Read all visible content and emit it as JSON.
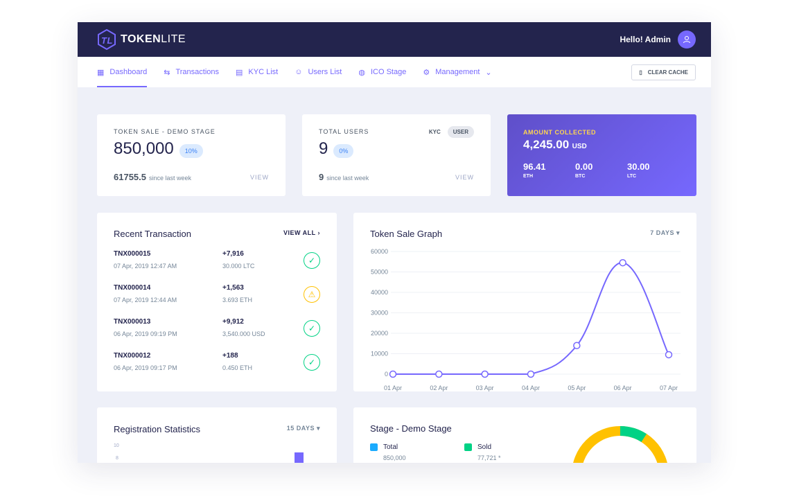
{
  "header": {
    "brand_bold": "TOKEN",
    "brand_light": "LITE",
    "greeting": "Hello! Admin"
  },
  "nav": {
    "items": [
      {
        "label": "Dashboard",
        "icon": "grid-icon"
      },
      {
        "label": "Transactions",
        "icon": "swap-icon"
      },
      {
        "label": "KYC List",
        "icon": "document-icon"
      },
      {
        "label": "Users List",
        "icon": "users-icon"
      },
      {
        "label": "ICO Stage",
        "icon": "coins-icon"
      },
      {
        "label": "Management",
        "icon": "gear-icon"
      }
    ],
    "clear_cache": "CLEAR CACHE"
  },
  "token_sale": {
    "label": "TOKEN SALE - DEMO STAGE",
    "value": "850,000",
    "pct": "10%",
    "since_value": "61755.5",
    "since_label": "since last week",
    "view": "VIEW"
  },
  "users": {
    "label": "TOTAL USERS",
    "tab_kyc": "KYC",
    "tab_user": "USER",
    "value": "9",
    "pct": "0%",
    "since_value": "9",
    "since_label": "since last week",
    "view": "VIEW"
  },
  "amount": {
    "label": "AMOUNT COLLECTED",
    "value": "4,245.00",
    "unit": "USD",
    "coins": [
      {
        "v": "96.41",
        "c": "ETH"
      },
      {
        "v": "0.00",
        "c": "BTC"
      },
      {
        "v": "30.00",
        "c": "LTC"
      }
    ]
  },
  "recent": {
    "title": "Recent Transaction",
    "view_all": "VIEW ALL",
    "rows": [
      {
        "id": "TNX000015",
        "date": "07 Apr, 2019 12:47 AM",
        "amount": "+7,916",
        "currency": "30.000 LTC",
        "status": "success"
      },
      {
        "id": "TNX000014",
        "date": "07 Apr, 2019 12:44 AM",
        "amount": "+1,563",
        "currency": "3.693 ETH",
        "status": "warning"
      },
      {
        "id": "TNX000013",
        "date": "06 Apr, 2019 09:19 PM",
        "amount": "+9,912",
        "currency": "3,540.000 USD",
        "status": "success"
      },
      {
        "id": "TNX000012",
        "date": "06 Apr, 2019 09:17 PM",
        "amount": "+188",
        "currency": "0.450 ETH",
        "status": "success"
      }
    ]
  },
  "graph": {
    "title": "Token Sale Graph",
    "range": "7 DAYS"
  },
  "chart_data": {
    "type": "line",
    "categories": [
      "01 Apr",
      "02 Apr",
      "03 Apr",
      "04 Apr",
      "05 Apr",
      "06 Apr",
      "07 Apr"
    ],
    "values": [
      0,
      0,
      0,
      0,
      14000,
      54500,
      9500
    ],
    "yticks": [
      0,
      10000,
      20000,
      30000,
      40000,
      50000,
      60000
    ],
    "ylim": [
      0,
      60000
    ],
    "grid": true,
    "color": "#7668fe"
  },
  "registration": {
    "title": "Registration Statistics",
    "range": "15 DAYS",
    "yticks": [
      "10",
      "8"
    ]
  },
  "stage": {
    "title": "Stage - Demo Stage",
    "total_label": "Total",
    "total_value": "850,000",
    "sold_label": "Sold",
    "sold_value": "77,721 *",
    "total_color": "#1babfe",
    "sold_color": "#00d285",
    "remaining_color": "#ffc100"
  }
}
